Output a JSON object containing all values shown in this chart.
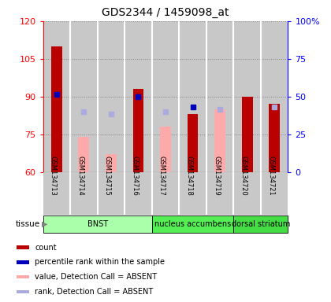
{
  "title": "GDS2344 / 1459098_at",
  "samples": [
    "GSM134713",
    "GSM134714",
    "GSM134715",
    "GSM134716",
    "GSM134717",
    "GSM134718",
    "GSM134719",
    "GSM134720",
    "GSM134721"
  ],
  "ylim_left": [
    60,
    120
  ],
  "ylim_right": [
    0,
    100
  ],
  "yticks_left": [
    60,
    75,
    90,
    105,
    120
  ],
  "yticks_right": [
    0,
    25,
    50,
    75,
    100
  ],
  "red_bars": {
    "GSM134713": 110,
    "GSM134716": 93,
    "GSM134718": 83,
    "GSM134720": 90,
    "GSM134721": 87
  },
  "pink_bars": {
    "GSM134714": 74,
    "GSM134715": 67,
    "GSM134717": 78,
    "GSM134719": 85
  },
  "blue_squares": {
    "GSM134713": 91,
    "GSM134716": 90,
    "GSM134718": 86
  },
  "lightblue_squares": {
    "GSM134714": 84,
    "GSM134715": 83,
    "GSM134717": 84,
    "GSM134719": 85,
    "GSM134721": 86
  },
  "tissue_groups": [
    {
      "label": "BNST",
      "samples": [
        "GSM134713",
        "GSM134714",
        "GSM134715",
        "GSM134716"
      ],
      "color": "#AAFFAA"
    },
    {
      "label": "nucleus accumbens",
      "samples": [
        "GSM134717",
        "GSM134718",
        "GSM134719"
      ],
      "color": "#55EE55"
    },
    {
      "label": "dorsal striatum",
      "samples": [
        "GSM134720",
        "GSM134721"
      ],
      "color": "#44DD44"
    }
  ],
  "tissue_label": "tissue",
  "bar_width": 0.4,
  "red_color": "#BB0000",
  "pink_color": "#FFAAAA",
  "blue_color": "#0000BB",
  "lightblue_color": "#AAAADD",
  "bg_color": "#C8C8C8",
  "legend_items": [
    {
      "color": "#BB0000",
      "label": "count"
    },
    {
      "color": "#0000BB",
      "label": "percentile rank within the sample"
    },
    {
      "color": "#FFAAAA",
      "label": "value, Detection Call = ABSENT"
    },
    {
      "color": "#AAAADD",
      "label": "rank, Detection Call = ABSENT"
    }
  ]
}
